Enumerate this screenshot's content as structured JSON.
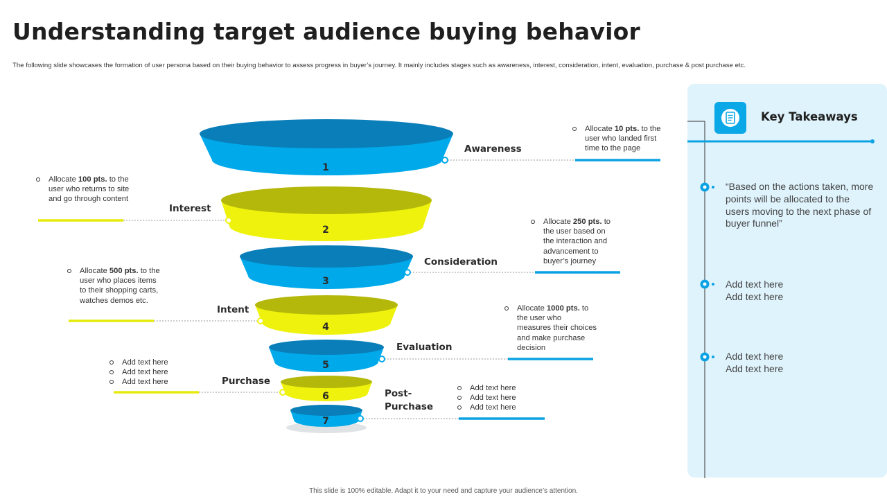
{
  "title": "Understanding target audience buying behavior",
  "subtitle": "The following slide showcases the formation of user persona based on their buying behavior to assess progress in buyer’s journey. It mainly includes stages such as awareness, interest, consideration, intent, evaluation, purchase & post purchase etc.",
  "colors": {
    "blue": "#00a9ea",
    "blue_top": "#0a7eb9",
    "yellow": "#eef20c",
    "yellow_top": "#b4b80a",
    "panel": "#dff3fc",
    "line_yellow": "#e6ea0b",
    "line_blue": "#0aa2e4"
  },
  "stages": [
    {
      "number": "1",
      "name": "Awareness"
    },
    {
      "number": "2",
      "name": "Interest"
    },
    {
      "number": "3",
      "name": "Consideration"
    },
    {
      "number": "4",
      "name": "Intent"
    },
    {
      "number": "5",
      "name": "Evaluation"
    },
    {
      "number": "6",
      "name": "Purchase"
    },
    {
      "number": "7",
      "name": "Post-Purchase"
    }
  ],
  "notes": {
    "awareness": {
      "pre": "Allocate ",
      "bold": "10 pts.",
      "post": " to the user who landed first time to the page"
    },
    "interest": {
      "pre": "Allocate ",
      "bold": "100 pts.",
      "post": " to the user who returns to site and go through content"
    },
    "consideration": {
      "pre": "Allocate ",
      "bold": "250 pts.",
      "post": " to the user based on the interaction and advancement to buyer’s journey"
    },
    "intent": {
      "pre": "Allocate ",
      "bold": "500 pts.",
      "post": " to the user who places items to their shopping carts, watches demos etc."
    },
    "evaluation": {
      "pre": "Allocate ",
      "bold": "1000 pts.",
      "post": " to the user who measures their choices and make purchase decision"
    },
    "purchase": [
      "Add text here",
      "Add text here",
      "Add text here"
    ],
    "post_purchase": [
      "Add text here",
      "Add text here",
      "Add text here"
    ]
  },
  "key_takeaways": {
    "title": "Key Takeaways",
    "icon": "document-icon",
    "items": [
      "“Based on the actions taken, more points will be allocated to the users moving to the next phase of buyer funnel”",
      "Add text here Add text here",
      "Add text here Add text here"
    ]
  },
  "footer": "This slide is 100% editable. Adapt it to your need and capture your audience’s attention."
}
